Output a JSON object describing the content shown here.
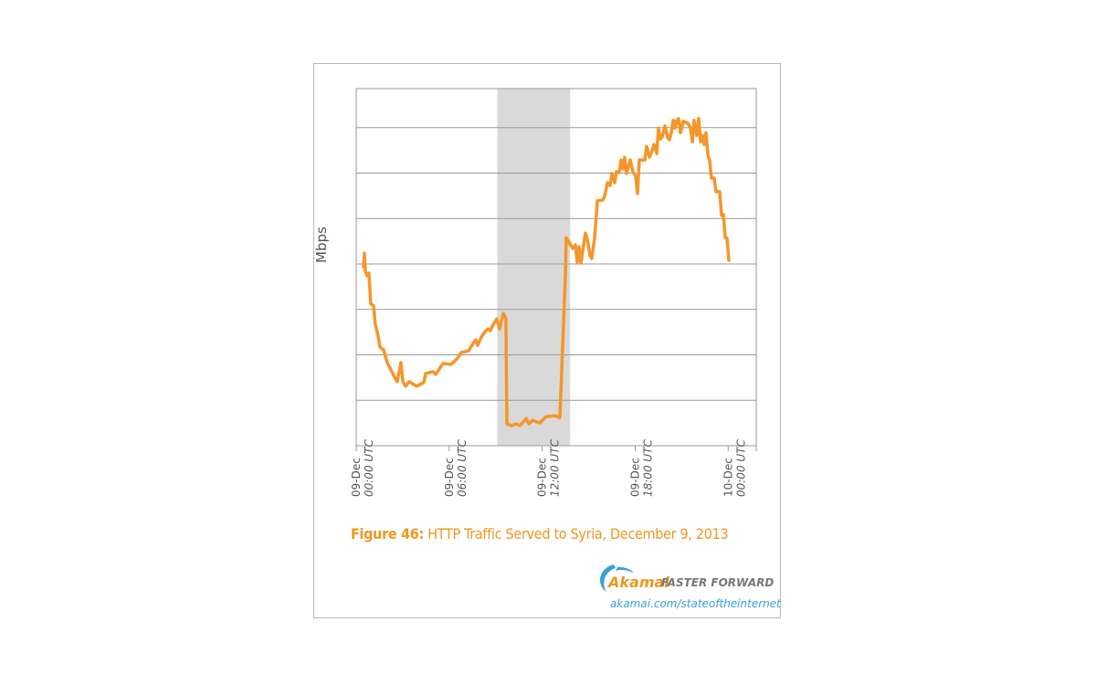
{
  "chart_data": {
    "type": "line",
    "title": "HTTP Traffic Served to Syria, December 9, 2013",
    "figure_label": "Figure 46:",
    "xlabel": "",
    "ylabel": "Mbps",
    "x_unit": "hours since 09-Dec 00:00 UTC",
    "xlim": [
      0,
      25.81
    ],
    "ylim": [
      0,
      7.86
    ],
    "y_scale_note": "unlabeled, gridline units",
    "grid": true,
    "x_ticks": [
      {
        "x": 0,
        "line1": "09-Dec",
        "line2": "00:00 UTC"
      },
      {
        "x": 6,
        "line1": "09-Dec",
        "line2": "06:00 UTC"
      },
      {
        "x": 12,
        "line1": "09-Dec",
        "line2": "12:00 UTC"
      },
      {
        "x": 18,
        "line1": "09-Dec",
        "line2": "18:00 UTC"
      },
      {
        "x": 24,
        "line1": "10-Dec",
        "line2": "00:00 UTC"
      }
    ],
    "y_gridlines": [
      1,
      2,
      3,
      4,
      5,
      6,
      7
    ],
    "shaded_region": {
      "x_start": 9.1,
      "x_end": 13.8,
      "color": "#d9d9d9"
    },
    "series": [
      {
        "name": "HTTP Traffic",
        "color": "#f5962a",
        "points": [
          [
            0.47,
            3.94
          ],
          [
            0.53,
            4.24
          ],
          [
            0.59,
            3.84
          ],
          [
            0.71,
            3.74
          ],
          [
            0.82,
            3.8
          ],
          [
            0.94,
            3.12
          ],
          [
            1.12,
            3.08
          ],
          [
            1.24,
            2.67
          ],
          [
            1.41,
            2.43
          ],
          [
            1.53,
            2.17
          ],
          [
            1.77,
            2.11
          ],
          [
            2.0,
            1.83
          ],
          [
            2.24,
            1.67
          ],
          [
            2.47,
            1.51
          ],
          [
            2.65,
            1.41
          ],
          [
            2.89,
            1.83
          ],
          [
            3.01,
            1.41
          ],
          [
            3.18,
            1.31
          ],
          [
            3.42,
            1.41
          ],
          [
            3.89,
            1.31
          ],
          [
            4.36,
            1.39
          ],
          [
            4.48,
            1.59
          ],
          [
            4.95,
            1.63
          ],
          [
            5.13,
            1.57
          ],
          [
            5.36,
            1.69
          ],
          [
            5.6,
            1.81
          ],
          [
            6.13,
            1.79
          ],
          [
            6.54,
            1.93
          ],
          [
            6.78,
            2.05
          ],
          [
            7.25,
            2.09
          ],
          [
            7.54,
            2.25
          ],
          [
            7.72,
            2.33
          ],
          [
            7.84,
            2.21
          ],
          [
            8.07,
            2.39
          ],
          [
            8.31,
            2.51
          ],
          [
            8.49,
            2.57
          ],
          [
            8.66,
            2.53
          ],
          [
            8.84,
            2.67
          ],
          [
            9.07,
            2.79
          ],
          [
            9.25,
            2.57
          ],
          [
            9.49,
            2.91
          ],
          [
            9.66,
            2.81
          ],
          [
            9.72,
            0.48
          ],
          [
            10.02,
            0.44
          ],
          [
            10.31,
            0.48
          ],
          [
            10.55,
            0.44
          ],
          [
            10.72,
            0.5
          ],
          [
            10.96,
            0.6
          ],
          [
            11.14,
            0.48
          ],
          [
            11.37,
            0.56
          ],
          [
            11.84,
            0.5
          ],
          [
            12.26,
            0.64
          ],
          [
            12.79,
            0.66
          ],
          [
            13.14,
            0.62
          ],
          [
            13.32,
            2.17
          ],
          [
            13.5,
            3.78
          ],
          [
            13.55,
            4.58
          ],
          [
            13.73,
            4.48
          ],
          [
            13.97,
            4.34
          ],
          [
            14.14,
            4.42
          ],
          [
            14.26,
            4.04
          ],
          [
            14.38,
            4.38
          ],
          [
            14.5,
            4.02
          ],
          [
            14.67,
            4.42
          ],
          [
            14.79,
            4.68
          ],
          [
            14.91,
            4.54
          ],
          [
            15.09,
            4.18
          ],
          [
            15.2,
            4.12
          ],
          [
            15.38,
            4.58
          ],
          [
            15.56,
            5.39
          ],
          [
            15.91,
            5.41
          ],
          [
            16.03,
            5.49
          ],
          [
            16.21,
            5.79
          ],
          [
            16.38,
            5.73
          ],
          [
            16.5,
            5.99
          ],
          [
            16.68,
            5.79
          ],
          [
            16.79,
            6.03
          ],
          [
            16.97,
            6.01
          ],
          [
            17.09,
            6.29
          ],
          [
            17.21,
            6.09
          ],
          [
            17.32,
            6.35
          ],
          [
            17.44,
            5.99
          ],
          [
            17.68,
            6.29
          ],
          [
            17.85,
            6.03
          ],
          [
            18.03,
            5.93
          ],
          [
            18.15,
            5.55
          ],
          [
            18.27,
            6.29
          ],
          [
            18.62,
            6.29
          ],
          [
            18.74,
            6.59
          ],
          [
            18.92,
            6.35
          ],
          [
            19.09,
            6.49
          ],
          [
            19.21,
            6.63
          ],
          [
            19.39,
            6.43
          ],
          [
            19.5,
            6.99
          ],
          [
            19.62,
            6.75
          ],
          [
            19.74,
            6.79
          ],
          [
            19.92,
            7.04
          ],
          [
            20.09,
            6.79
          ],
          [
            20.21,
            6.73
          ],
          [
            20.33,
            6.89
          ],
          [
            20.45,
            7.16
          ],
          [
            20.57,
            6.99
          ],
          [
            20.68,
            7.16
          ],
          [
            20.8,
            7.2
          ],
          [
            20.92,
            6.89
          ],
          [
            21.1,
            7.14
          ],
          [
            21.39,
            7.1
          ],
          [
            21.57,
            6.99
          ],
          [
            21.69,
            6.69
          ],
          [
            21.8,
            7.16
          ],
          [
            21.98,
            6.83
          ],
          [
            22.1,
            7.2
          ],
          [
            22.22,
            6.69
          ],
          [
            22.33,
            6.83
          ],
          [
            22.45,
            6.63
          ],
          [
            22.57,
            6.89
          ],
          [
            22.69,
            6.39
          ],
          [
            22.8,
            6.29
          ],
          [
            22.92,
            5.89
          ],
          [
            23.1,
            5.89
          ],
          [
            23.22,
            5.59
          ],
          [
            23.45,
            5.59
          ],
          [
            23.57,
            5.07
          ],
          [
            23.69,
            5.09
          ],
          [
            23.81,
            4.58
          ],
          [
            23.92,
            4.58
          ],
          [
            24.04,
            4.08
          ]
        ]
      }
    ]
  },
  "branding": {
    "brand": "Akamai",
    "tagline": "FASTER FORWARD",
    "url": "akamai.com/stateoftheinternet",
    "accent": "#f0961e",
    "link_color": "#3aa0dc"
  }
}
